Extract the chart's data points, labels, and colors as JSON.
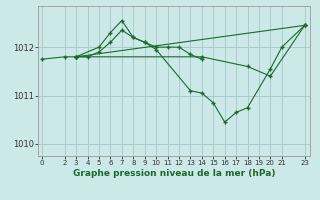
{
  "background_color": "#cce8e8",
  "grid_color": "#aacccc",
  "line_color": "#1a6b2a",
  "marker_color": "#1a6b2a",
  "xlabel": "Graphe pression niveau de la mer (hPa)",
  "ylim": [
    1009.75,
    1012.85
  ],
  "yticks": [
    1010,
    1011,
    1012
  ],
  "xlim": [
    -0.3,
    23.5
  ],
  "xticks": [
    0,
    2,
    3,
    4,
    5,
    6,
    7,
    8,
    9,
    10,
    11,
    12,
    13,
    14,
    15,
    16,
    17,
    18,
    19,
    20,
    21,
    23
  ],
  "series": [
    {
      "x": [
        3,
        5,
        6,
        7,
        8,
        9,
        10,
        13,
        14,
        15,
        16,
        17,
        18,
        20,
        21,
        23
      ],
      "y": [
        1011.8,
        1012.0,
        1012.3,
        1012.55,
        1012.2,
        1012.1,
        1011.95,
        1011.1,
        1011.05,
        1010.85,
        1010.45,
        1010.65,
        1010.75,
        1011.55,
        1012.0,
        1012.45
      ]
    },
    {
      "x": [
        0,
        2,
        3,
        4,
        5,
        6,
        7,
        8,
        9,
        10,
        11,
        12,
        13,
        14
      ],
      "y": [
        1011.75,
        1011.8,
        1011.8,
        1011.8,
        1011.9,
        1012.1,
        1012.35,
        1012.2,
        1012.1,
        1012.0,
        1012.0,
        1012.0,
        1011.85,
        1011.75
      ]
    },
    {
      "x": [
        3,
        14,
        18,
        20,
        23
      ],
      "y": [
        1011.8,
        1011.8,
        1011.6,
        1011.4,
        1012.45
      ]
    },
    {
      "x": [
        3,
        23
      ],
      "y": [
        1011.8,
        1012.45
      ]
    }
  ]
}
